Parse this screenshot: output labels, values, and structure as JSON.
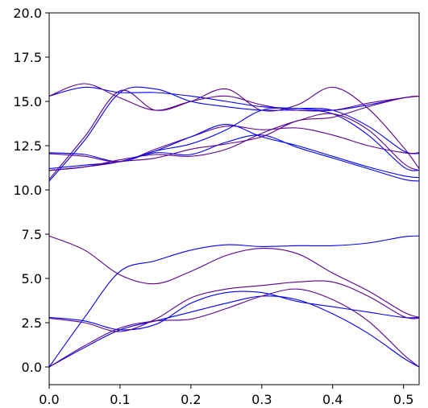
{
  "chart_data": {
    "type": "line",
    "title": "",
    "xlabel": "",
    "ylabel": "",
    "xlim": [
      0,
      0.522
    ],
    "ylim": [
      -1.0,
      20.0
    ],
    "xticks": [
      0.0,
      0.1,
      0.2,
      0.3,
      0.4,
      0.5
    ],
    "yticks": [
      0.0,
      2.5,
      5.0,
      7.5,
      10.0,
      12.5,
      15.0,
      17.5,
      20.0
    ],
    "xtick_labels": [
      "0.0",
      "0.1",
      "0.2",
      "0.3",
      "0.4",
      "0.5"
    ],
    "ytick_labels": [
      "0.0",
      "2.5",
      "5.0",
      "7.5",
      "10.0",
      "12.5",
      "15.0",
      "17.5",
      "20.0"
    ],
    "grid": false,
    "legend": "none",
    "line_colors": [
      "#0000ff",
      "#5a0090"
    ],
    "series": [
      {
        "x": [
          0,
          0.05,
          0.1,
          0.15,
          0.2,
          0.25,
          0.3,
          0.35,
          0.4,
          0.45,
          0.5,
          0.522
        ],
        "y": [
          0.0,
          1.1,
          2.1,
          2.6,
          3.1,
          3.6,
          4.0,
          3.8,
          3.0,
          1.9,
          0.5,
          0.0
        ]
      },
      {
        "x": [
          0,
          0.05,
          0.1,
          0.15,
          0.2,
          0.25,
          0.3,
          0.35,
          0.4,
          0.45,
          0.5,
          0.522
        ],
        "y": [
          0.0,
          1.2,
          2.2,
          2.6,
          2.7,
          3.3,
          4.0,
          4.4,
          3.8,
          2.6,
          0.7,
          0.0
        ]
      },
      {
        "x": [
          0,
          0.05,
          0.1,
          0.15,
          0.2,
          0.25,
          0.3,
          0.35,
          0.4,
          0.45,
          0.5,
          0.522
        ],
        "y": [
          2.8,
          2.6,
          2.1,
          2.4,
          3.6,
          4.2,
          4.2,
          3.7,
          3.4,
          3.1,
          2.8,
          2.8
        ]
      },
      {
        "x": [
          0,
          0.05,
          0.1,
          0.15,
          0.2,
          0.25,
          0.3,
          0.35,
          0.4,
          0.45,
          0.5,
          0.522
        ],
        "y": [
          2.75,
          2.5,
          2.0,
          2.7,
          3.9,
          4.4,
          4.6,
          4.8,
          4.8,
          4.0,
          2.85,
          2.75
        ]
      },
      {
        "x": [
          0,
          0.05,
          0.1,
          0.15,
          0.2,
          0.25,
          0.3,
          0.35,
          0.4,
          0.45,
          0.5,
          0.522
        ],
        "y": [
          0.0,
          2.8,
          5.4,
          6.0,
          6.6,
          6.9,
          6.8,
          6.85,
          6.85,
          7.0,
          7.35,
          7.4
        ]
      },
      {
        "x": [
          0,
          0.05,
          0.1,
          0.15,
          0.2,
          0.25,
          0.3,
          0.35,
          0.4,
          0.45,
          0.5,
          0.522
        ],
        "y": [
          7.4,
          6.6,
          5.2,
          4.7,
          5.4,
          6.3,
          6.7,
          6.4,
          5.3,
          4.3,
          3.1,
          2.8
        ]
      },
      {
        "x": [
          0,
          0.05,
          0.1,
          0.15,
          0.2,
          0.25,
          0.3,
          0.35,
          0.4,
          0.45,
          0.5,
          0.522
        ],
        "y": [
          10.5,
          12.8,
          15.5,
          15.7,
          15.0,
          14.7,
          14.5,
          14.5,
          14.3,
          13.1,
          11.3,
          11.1
        ]
      },
      {
        "x": [
          0,
          0.05,
          0.1,
          0.15,
          0.2,
          0.25,
          0.3,
          0.35,
          0.4,
          0.45,
          0.5,
          0.522
        ],
        "y": [
          10.6,
          13.0,
          15.6,
          14.5,
          15.0,
          15.7,
          14.5,
          14.8,
          15.8,
          14.6,
          12.4,
          11.2
        ]
      },
      {
        "x": [
          0,
          0.05,
          0.1,
          0.15,
          0.2,
          0.25,
          0.3,
          0.35,
          0.4,
          0.45,
          0.5,
          0.522
        ],
        "y": [
          15.3,
          15.8,
          15.5,
          15.5,
          15.3,
          15.0,
          14.7,
          14.6,
          14.5,
          14.8,
          15.2,
          15.3
        ]
      },
      {
        "x": [
          0,
          0.05,
          0.1,
          0.15,
          0.2,
          0.25,
          0.3,
          0.35,
          0.4,
          0.45,
          0.5,
          0.522
        ],
        "y": [
          15.3,
          16.0,
          15.2,
          14.5,
          15.0,
          15.3,
          14.8,
          14.5,
          14.5,
          14.9,
          15.2,
          15.3
        ]
      },
      {
        "x": [
          0,
          0.05,
          0.1,
          0.15,
          0.2,
          0.25,
          0.3,
          0.35,
          0.4,
          0.45,
          0.5,
          0.522
        ],
        "y": [
          12.1,
          12.0,
          11.6,
          12.2,
          12.6,
          13.4,
          14.5,
          14.6,
          14.5,
          13.6,
          12.2,
          12.1
        ]
      },
      {
        "x": [
          0,
          0.05,
          0.1,
          0.15,
          0.2,
          0.25,
          0.3,
          0.35,
          0.4,
          0.45,
          0.5,
          0.522
        ],
        "y": [
          12.05,
          11.9,
          11.6,
          12.3,
          13.0,
          13.6,
          13.4,
          13.5,
          13.1,
          12.5,
          12.1,
          12.05
        ]
      },
      {
        "x": [
          0,
          0.05,
          0.1,
          0.15,
          0.2,
          0.25,
          0.3,
          0.35,
          0.4,
          0.45,
          0.5,
          0.522
        ],
        "y": [
          11.2,
          11.4,
          11.6,
          12.1,
          12.0,
          12.7,
          13.1,
          12.4,
          11.8,
          11.2,
          10.6,
          10.5
        ]
      },
      {
        "x": [
          0,
          0.05,
          0.1,
          0.15,
          0.2,
          0.25,
          0.3,
          0.35,
          0.4,
          0.45,
          0.5,
          0.522
        ],
        "y": [
          11.1,
          11.3,
          11.7,
          12.0,
          11.9,
          12.3,
          13.2,
          13.9,
          14.3,
          13.4,
          11.5,
          11.1
        ]
      },
      {
        "x": [
          0,
          0.05,
          0.1,
          0.15,
          0.2,
          0.25,
          0.3,
          0.35,
          0.4,
          0.45,
          0.5,
          0.522
        ],
        "y": [
          11.1,
          11.3,
          11.6,
          12.2,
          13.0,
          13.7,
          13.0,
          12.5,
          11.9,
          11.3,
          10.8,
          10.7
        ]
      },
      {
        "x": [
          0,
          0.05,
          0.1,
          0.15,
          0.2,
          0.25,
          0.3,
          0.35,
          0.4,
          0.45,
          0.5,
          0.522
        ],
        "y": [
          11.1,
          11.3,
          11.6,
          11.8,
          12.3,
          12.6,
          13.0,
          13.9,
          14.1,
          14.7,
          15.2,
          15.3
        ]
      }
    ]
  }
}
